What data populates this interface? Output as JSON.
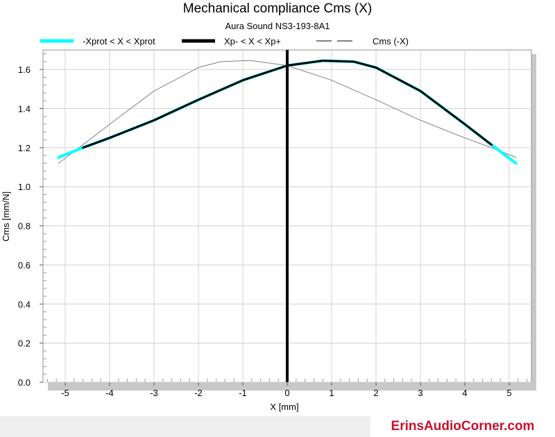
{
  "chart_data": {
    "type": "line",
    "title": "Mechanical compliance Cms (X)",
    "subtitle": "Aura Sound NS3-193-8A1",
    "xlabel": "X [mm]",
    "ylabel": "Cms [mm/N]",
    "xlim": [
      -5.5,
      5.5
    ],
    "ylim": [
      0,
      1.7
    ],
    "xticks": [
      "-5",
      "-4",
      "-3",
      "-2",
      "-1",
      "0",
      "1",
      "2",
      "3",
      "4",
      "5"
    ],
    "yticks": [
      "0.0",
      "0.2",
      "0.4",
      "0.6",
      "0.8",
      "1.0",
      "1.2",
      "1.4",
      "1.6"
    ],
    "grid": true,
    "legend_position": "top",
    "series": [
      {
        "name": "-Xprot < X < Xprot",
        "color": "#00ffff",
        "x": [
          -5.15,
          -4.6,
          -4.0,
          -3.0,
          -2.0,
          -1.0,
          0.0,
          0.8,
          1.5,
          2.0,
          3.0,
          4.0,
          4.6,
          5.15
        ],
        "values": [
          1.15,
          1.2,
          1.25,
          1.34,
          1.445,
          1.545,
          1.62,
          1.645,
          1.64,
          1.61,
          1.49,
          1.32,
          1.215,
          1.12
        ]
      },
      {
        "name": "Xp- < X < Xp+",
        "color": "#000000",
        "x": [
          -4.6,
          -4.0,
          -3.0,
          -2.0,
          -1.0,
          0.0,
          0.8,
          1.5,
          2.0,
          3.0,
          4.0,
          4.6
        ],
        "values": [
          1.2,
          1.25,
          1.34,
          1.445,
          1.545,
          1.62,
          1.645,
          1.64,
          1.61,
          1.49,
          1.32,
          1.215
        ]
      },
      {
        "name": "Cms (-X)",
        "color": "#808080",
        "x": [
          -5.15,
          -4.6,
          -4.0,
          -3.0,
          -2.0,
          -1.5,
          -1.0,
          -0.8,
          0.0,
          1.0,
          2.0,
          3.0,
          4.0,
          4.6,
          5.15
        ],
        "values": [
          1.12,
          1.215,
          1.32,
          1.49,
          1.61,
          1.64,
          1.645,
          1.645,
          1.62,
          1.545,
          1.445,
          1.34,
          1.25,
          1.2,
          1.15
        ]
      }
    ],
    "vertical_marker": {
      "x": 0,
      "color": "#000000"
    }
  },
  "footer": {
    "brand": "ErinsAudioCorner.com",
    "brand_color": "#c8102e"
  }
}
